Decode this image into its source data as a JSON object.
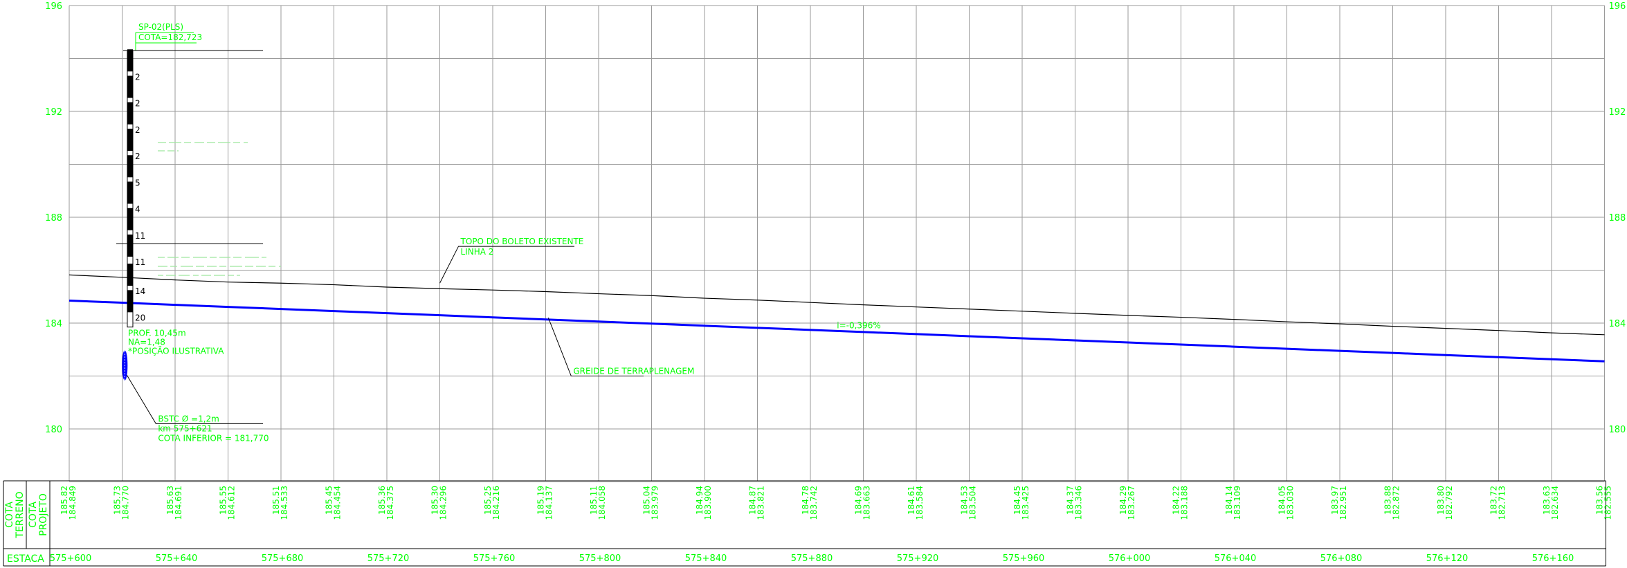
{
  "colors": {
    "green": "#00ff00",
    "blue": "#0000ff",
    "grid": "#9a9a9a",
    "black": "#000000",
    "faint": "#7fe07f"
  },
  "chart_data": {
    "type": "line",
    "title": "",
    "xlabel": "",
    "ylabel": "",
    "xlim": [
      575600,
      576180
    ],
    "ylim": [
      178,
      196
    ],
    "y_ticks": [
      "196",
      "192",
      "188",
      "184",
      "180"
    ],
    "y_tick_values": [
      196,
      192,
      188,
      184,
      180
    ],
    "x_values": [
      575600,
      575620,
      575640,
      575660,
      575680,
      575700,
      575720,
      575740,
      575760,
      575780,
      575800,
      575820,
      575840,
      575860,
      575880,
      575900,
      575920,
      575940,
      575960,
      575980,
      576000,
      576020,
      576040,
      576060,
      576080,
      576100,
      576120,
      576140,
      576160,
      576180
    ],
    "estaca_labels": [
      {
        "x": 575600,
        "label": "575+600"
      },
      {
        "x": 575640,
        "label": "575+640"
      },
      {
        "x": 575680,
        "label": "575+680"
      },
      {
        "x": 575720,
        "label": "575+720"
      },
      {
        "x": 575760,
        "label": "575+760"
      },
      {
        "x": 575800,
        "label": "575+800"
      },
      {
        "x": 575840,
        "label": "575+840"
      },
      {
        "x": 575880,
        "label": "575+880"
      },
      {
        "x": 575920,
        "label": "575+920"
      },
      {
        "x": 575960,
        "label": "575+960"
      },
      {
        "x": 576000,
        "label": "576+000"
      },
      {
        "x": 576040,
        "label": "576+040"
      },
      {
        "x": 576080,
        "label": "576+080"
      },
      {
        "x": 576120,
        "label": "576+120"
      },
      {
        "x": 576160,
        "label": "576+160"
      }
    ],
    "cota_terreno": [
      "185.82",
      "185.73",
      "185.63",
      "185.55",
      "185.51",
      "185.45",
      "185.36",
      "185.30",
      "185.25",
      "185.19",
      "185.11",
      "185.04",
      "184.94",
      "184.87",
      "184.78",
      "184.69",
      "184.61",
      "184.53",
      "184.45",
      "184.37",
      "184.29",
      "184.22",
      "184.14",
      "184.05",
      "183.97",
      "183.88",
      "183.80",
      "183.72",
      "183.63",
      "183.56"
    ],
    "cota_projeto": [
      "184.849",
      "184.770",
      "184.691",
      "184.612",
      "184.533",
      "184.454",
      "184.375",
      "184.296",
      "184.216",
      "184.137",
      "184.058",
      "183.979",
      "183.900",
      "183.821",
      "183.742",
      "183.663",
      "183.584",
      "183.504",
      "183.425",
      "183.346",
      "183.267",
      "183.188",
      "183.109",
      "183.030",
      "182.951",
      "182.872",
      "182.792",
      "182.713",
      "182.634",
      "182.555"
    ],
    "series": [
      {
        "key": "existing",
        "values": [
          185.82,
          185.73,
          185.63,
          185.55,
          185.51,
          185.45,
          185.36,
          185.3,
          185.25,
          185.19,
          185.11,
          185.04,
          184.94,
          184.87,
          184.78,
          184.69,
          184.61,
          184.53,
          184.45,
          184.37,
          184.29,
          184.22,
          184.14,
          184.05,
          183.97,
          183.88,
          183.8,
          183.72,
          183.63,
          183.56
        ]
      },
      {
        "key": "grade",
        "values": [
          184.849,
          184.77,
          184.691,
          184.612,
          184.533,
          184.454,
          184.375,
          184.296,
          184.216,
          184.137,
          184.058,
          183.979,
          183.9,
          183.821,
          183.742,
          183.663,
          183.584,
          183.504,
          183.425,
          183.346,
          183.267,
          183.188,
          183.109,
          183.03,
          182.951,
          182.872,
          182.792,
          182.713,
          182.634,
          182.555
        ]
      }
    ],
    "row_labels": {
      "cota_terreno": [
        "COTA",
        "TERRENO"
      ],
      "cota_projeto": [
        "COTA",
        "PROJETO"
      ],
      "estaca": "ESTACA"
    },
    "borehole": {
      "x": 575623,
      "top": 194.3,
      "bottom": 183.85,
      "name": "SP-02(PLS)",
      "cota": "COTA=182,723",
      "spt": [
        {
          "value": "2",
          "y": 193.3
        },
        {
          "value": "2",
          "y": 192.3
        },
        {
          "value": "2",
          "y": 191.3
        },
        {
          "value": "2",
          "y": 190.3
        },
        {
          "value": "5",
          "y": 189.3
        },
        {
          "value": "4",
          "y": 188.3
        },
        {
          "value": "11",
          "y": 187.3
        },
        {
          "value": "11",
          "y": 186.3
        },
        {
          "value": "14",
          "y": 185.2
        },
        {
          "value": "20",
          "y": 184.2
        }
      ],
      "info": [
        "PROF. 10,45m",
        "NA=1,48",
        "*POSIÇÃO ILUSTRATIVA"
      ]
    },
    "annotations": {
      "topo": [
        "TOPO DO BOLETO EXISTENTE",
        "LINHA 2"
      ],
      "greide": "GREIDE DE TERRAPLENAGEM",
      "slope": "i=-0,396%",
      "bstc": [
        "BSTC Ø =1,2m",
        "km 575+621",
        "COTA INFERIOR = 181,770"
      ],
      "culvert_x": 575621,
      "culvert_y": 182.4
    }
  }
}
